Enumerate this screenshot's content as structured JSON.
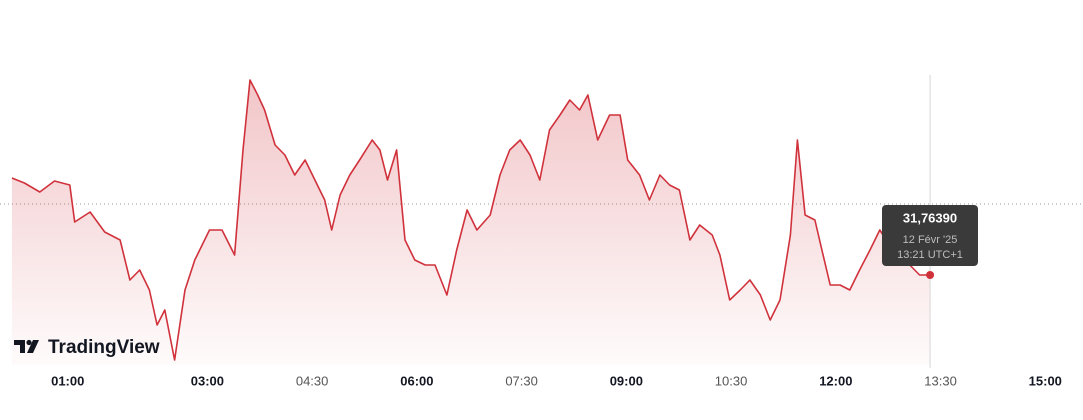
{
  "chart_data": {
    "type": "line",
    "series": [
      {
        "color": "#d0323c",
        "x": [
          0.2,
          0.38,
          0.6,
          0.81,
          1.03,
          1.1,
          1.32,
          1.53,
          1.75,
          1.89,
          2.03,
          2.17,
          2.28,
          2.39,
          2.53,
          2.68,
          2.82,
          3.03,
          3.21,
          3.39,
          3.51,
          3.61,
          3.72,
          3.82,
          3.97,
          4.11,
          4.25,
          4.4,
          4.54,
          4.68,
          4.78,
          4.9,
          5.04,
          5.18,
          5.36,
          5.47,
          5.58,
          5.71,
          5.83,
          5.97,
          6.12,
          6.26,
          6.43,
          6.57,
          6.72,
          6.86,
          7.05,
          7.19,
          7.33,
          7.48,
          7.62,
          7.76,
          7.9,
          8.05,
          8.19,
          8.33,
          8.45,
          8.59,
          8.76,
          8.91,
          9.02,
          9.19,
          9.33,
          9.48,
          9.62,
          9.76,
          9.91,
          10.05,
          10.23,
          10.34,
          10.48,
          10.63,
          10.77,
          10.92,
          11.06,
          11.2,
          11.35,
          11.45,
          11.56,
          11.7,
          11.8,
          11.92,
          12.06,
          12.2,
          12.34,
          12.49,
          12.63,
          12.77,
          12.92,
          13.06,
          13.2,
          13.35
        ],
        "values": [
          31.9579,
          31.9479,
          31.9299,
          31.9519,
          31.9439,
          31.8699,
          31.8899,
          31.8499,
          31.8339,
          31.7539,
          31.7739,
          31.7339,
          31.6639,
          31.6939,
          31.5939,
          31.7339,
          31.7939,
          31.8539,
          31.8539,
          31.8039,
          32.0139,
          32.1539,
          32.1239,
          32.0939,
          32.0239,
          32.0039,
          31.9639,
          31.9939,
          31.9539,
          31.9139,
          31.8539,
          31.9239,
          31.9639,
          31.9939,
          32.0339,
          32.0139,
          31.9539,
          32.0139,
          31.8339,
          31.7939,
          31.7839,
          31.7839,
          31.7239,
          31.8139,
          31.8939,
          31.8539,
          31.8839,
          31.9639,
          32.0139,
          32.0339,
          32.0039,
          31.9539,
          32.0539,
          32.0839,
          32.1139,
          32.0939,
          32.1239,
          32.0339,
          32.0839,
          32.0839,
          31.9939,
          31.9639,
          31.9139,
          31.9639,
          31.9439,
          31.9339,
          31.8339,
          31.8639,
          31.8439,
          31.8039,
          31.7139,
          31.7339,
          31.7539,
          31.7239,
          31.6739,
          31.7139,
          31.8439,
          32.0339,
          31.8839,
          31.8739,
          31.8139,
          31.7439,
          31.7439,
          31.7339,
          31.7739,
          31.8139,
          31.8539,
          31.8239,
          31.8039,
          31.7839,
          31.7639,
          31.7639
        ]
      }
    ],
    "baseline": 31.9059,
    "xlim": [
      0.03,
      15.54
    ],
    "ylim": [
      31.5839,
      32.1639
    ],
    "xticks": [
      {
        "value": 1,
        "label": "01:00",
        "bold": true
      },
      {
        "value": 3,
        "label": "03:00",
        "bold": true
      },
      {
        "value": 4.5,
        "label": "04:30",
        "bold": false
      },
      {
        "value": 6,
        "label": "06:00",
        "bold": true
      },
      {
        "value": 7.5,
        "label": "07:30",
        "bold": false
      },
      {
        "value": 9,
        "label": "09:00",
        "bold": true
      },
      {
        "value": 10.5,
        "label": "10:30",
        "bold": false
      },
      {
        "value": 12,
        "label": "12:00",
        "bold": true
      },
      {
        "value": 13.5,
        "label": "13:30",
        "bold": false
      },
      {
        "value": 15,
        "label": "15:00",
        "bold": true
      }
    ],
    "tooltip": {
      "price": "31,76390",
      "date": "12 Févr '25",
      "time": "13:21 UTC+1"
    },
    "brand": "TradingView"
  }
}
